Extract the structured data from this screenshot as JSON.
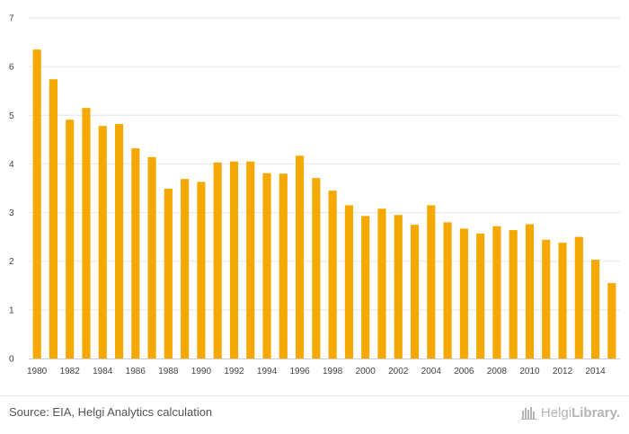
{
  "colors": {
    "bar": "#f5a900",
    "grid": "#e6e6e6",
    "axis": "#cccccc"
  },
  "chart_data": {
    "type": "bar",
    "title": "",
    "xlabel": "",
    "ylabel": "",
    "ylim": [
      0,
      7
    ],
    "yticks": [
      0,
      1,
      2,
      3,
      4,
      5,
      6,
      7
    ],
    "grid": true,
    "categories": [
      1980,
      1981,
      1982,
      1983,
      1984,
      1985,
      1986,
      1987,
      1988,
      1989,
      1990,
      1991,
      1992,
      1993,
      1994,
      1995,
      1996,
      1997,
      1998,
      1999,
      2000,
      2001,
      2002,
      2003,
      2004,
      2005,
      2006,
      2007,
      2008,
      2009,
      2010,
      2011,
      2012,
      2013,
      2014,
      2015
    ],
    "xtick_labels": [
      "1980",
      "1982",
      "1984",
      "1986",
      "1988",
      "1990",
      "1992",
      "1994",
      "1996",
      "1998",
      "2000",
      "2002",
      "2004",
      "2006",
      "2008",
      "2010",
      "2012",
      "2014"
    ],
    "values": [
      6.35,
      5.74,
      4.91,
      5.15,
      4.78,
      4.82,
      4.32,
      4.14,
      3.49,
      3.69,
      3.63,
      4.03,
      4.05,
      4.05,
      3.81,
      3.8,
      4.17,
      3.71,
      3.45,
      3.15,
      2.93,
      3.08,
      2.95,
      2.75,
      3.15,
      2.8,
      2.67,
      2.57,
      2.72,
      2.64,
      2.76,
      2.44,
      2.38,
      2.5,
      2.03,
      1.55
    ]
  },
  "footer": {
    "source": "Source: EIA, Helgi Analytics calculation",
    "logo_regular": "Helgi",
    "logo_bold": "Library."
  }
}
